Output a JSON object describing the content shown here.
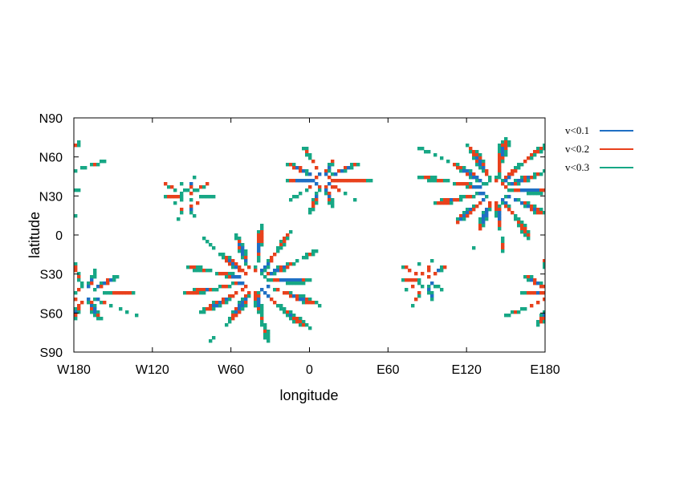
{
  "chart_data": {
    "type": "heatmap",
    "title": "",
    "xlabel": "longitude",
    "ylabel": "latitude",
    "xlim": [
      -180,
      180
    ],
    "ylim": [
      -90,
      90
    ],
    "x_ticks": [
      {
        "value": -180,
        "label": "W180"
      },
      {
        "value": -120,
        "label": "W120"
      },
      {
        "value": -60,
        "label": "W60"
      },
      {
        "value": 0,
        "label": "0"
      },
      {
        "value": 60,
        "label": "E60"
      },
      {
        "value": 120,
        "label": "E120"
      },
      {
        "value": 180,
        "label": "E180"
      }
    ],
    "y_ticks": [
      {
        "value": 90,
        "label": "N90"
      },
      {
        "value": 60,
        "label": "N60"
      },
      {
        "value": 30,
        "label": "N30"
      },
      {
        "value": 0,
        "label": "0"
      },
      {
        "value": -30,
        "label": "S30"
      },
      {
        "value": -60,
        "label": "S60"
      },
      {
        "value": -90,
        "label": "S90"
      }
    ],
    "legend_position": "right",
    "series": [
      {
        "name": "v<0.1",
        "color": "#1f6fc4"
      },
      {
        "name": "v<0.2",
        "color": "#e8411c"
      },
      {
        "name": "v<0.3",
        "color": "#17a785"
      }
    ],
    "centers": [
      {
        "lon": 142,
        "lat": 34,
        "n": 13,
        "reach": 58,
        "strength": 1.0
      },
      {
        "lon": -42,
        "lat": -35,
        "n": 13,
        "reach": 58,
        "strength": 1.0
      },
      {
        "lon": 10,
        "lat": 42,
        "n": 10,
        "reach": 34,
        "strength": 0.8
      },
      {
        "lon": -171,
        "lat": -45,
        "n": 10,
        "reach": 36,
        "strength": 0.8
      },
      {
        "lon": -94,
        "lat": 30,
        "n": 10,
        "reach": 26,
        "strength": 0.6
      },
      {
        "lon": 88,
        "lat": -34,
        "n": 10,
        "reach": 26,
        "strength": 0.6
      }
    ]
  }
}
